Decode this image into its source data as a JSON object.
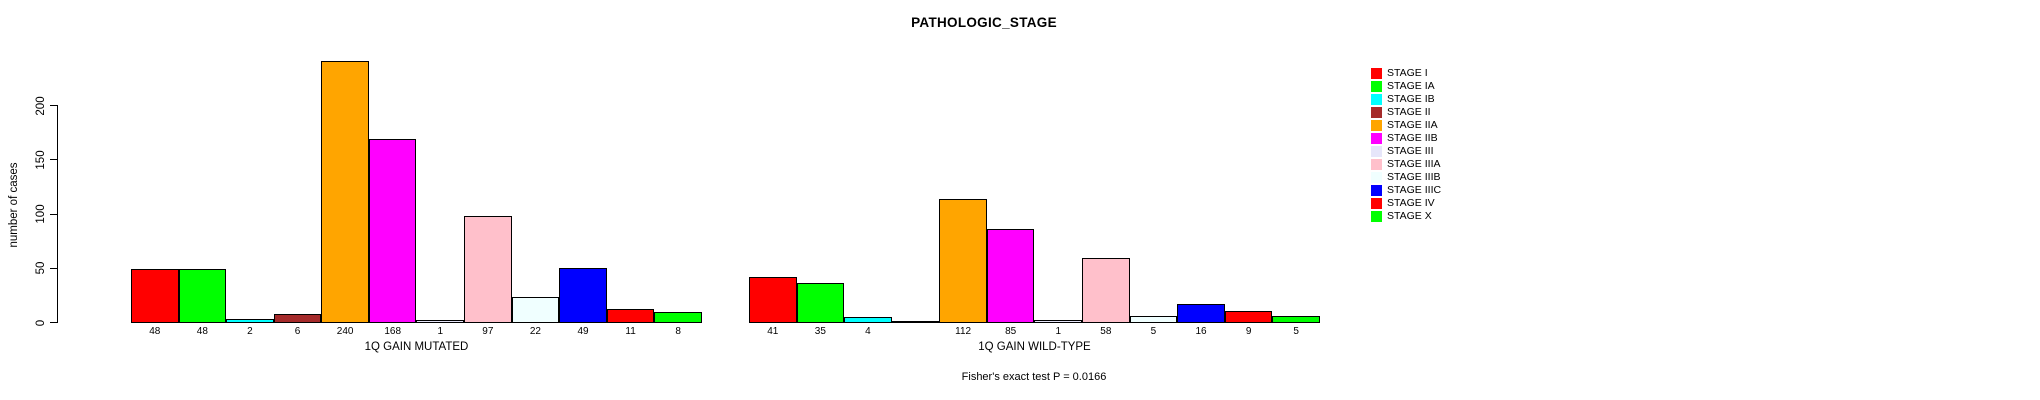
{
  "chart_data": {
    "type": "bar",
    "title": "PATHOLOGIC_STAGE",
    "ylabel": "number of cases",
    "yticks": [
      0,
      50,
      100,
      150,
      200
    ],
    "ylim": [
      0,
      240
    ],
    "grid": false,
    "legend_position": "right",
    "categories": [
      "STAGE I",
      "STAGE IA",
      "STAGE IB",
      "STAGE II",
      "STAGE IIA",
      "STAGE IIB",
      "STAGE III",
      "STAGE IIIA",
      "STAGE IIIB",
      "STAGE IIIC",
      "STAGE IV",
      "STAGE X"
    ],
    "colors": [
      "#FF0000",
      "#00FF00",
      "#00FFFF",
      "#A52A2A",
      "#FFA500",
      "#FF00FF",
      "#E6E6FA",
      "#FFC0CB",
      "#F0FFFF",
      "#0000FF",
      "#FF0000",
      "#00FF00"
    ],
    "groups": [
      {
        "label": "1Q GAIN MUTATED",
        "values": [
          48,
          48,
          2,
          6,
          240,
          168,
          1,
          97,
          22,
          49,
          11,
          8
        ]
      },
      {
        "label": "1Q GAIN WILD-TYPE",
        "values": [
          41,
          35,
          4,
          0,
          112,
          85,
          1,
          58,
          5,
          16,
          9,
          5
        ]
      }
    ],
    "footnote": "Fisher's exact test P = 0.0166"
  }
}
